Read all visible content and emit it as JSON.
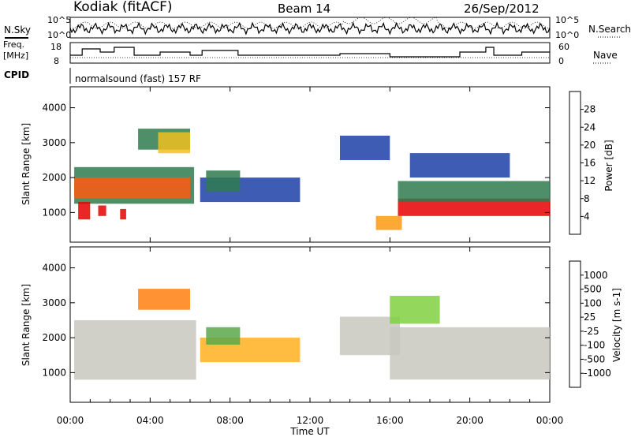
{
  "header": {
    "station": "Kodiak (fitACF)",
    "beam": "Beam 14",
    "date": "26/Sep/2012"
  },
  "labels": {
    "nsky": "N.Sky",
    "nsearch": "N.Search",
    "freq_line1": "Freq.",
    "freq_line2": "[MHz]",
    "nave": "Nave",
    "cpid": "CPID",
    "cpid_value": "normalsound (fast) 157 RF",
    "noise_ticks_left": [
      "10^5",
      "10^0"
    ],
    "noise_ticks_right": [
      "10^5",
      "10^0"
    ],
    "freq_ticks": [
      "18",
      "8"
    ],
    "nave_ticks": [
      "60",
      "0"
    ]
  },
  "chart_data": [
    {
      "type": "heatmap",
      "name": "power",
      "xlabel": "",
      "ylabel": "Slant Range [km]",
      "x_ticks": [
        "00:00",
        "04:00",
        "08:00",
        "12:00",
        "16:00",
        "20:00",
        "00:00"
      ],
      "y_ticks": [
        1000,
        2000,
        3000,
        4000
      ],
      "ylim": [
        150,
        4600
      ],
      "colorbar": {
        "label": "Power [dB]",
        "ticks": [
          "4",
          "8",
          "12",
          "16",
          "20",
          "24",
          "28"
        ],
        "colors": [
          "#0a1aff",
          "#1d3fa8",
          "#2f7a4f",
          "#4ea84a",
          "#9ad640",
          "#f0c020",
          "#ff9a10",
          "#ff5a10",
          "#e80000"
        ]
      },
      "regions": [
        {
          "t0": 0.2,
          "t1": 6.2,
          "r0": 1250,
          "r1": 2300,
          "color": "#2f7a4f"
        },
        {
          "t0": 0.2,
          "t1": 6.0,
          "r0": 1400,
          "r1": 2000,
          "color": "#ff5a10"
        },
        {
          "t0": 0.4,
          "t1": 1.0,
          "r0": 800,
          "r1": 1300,
          "color": "#e80000"
        },
        {
          "t0": 1.4,
          "t1": 1.8,
          "r0": 900,
          "r1": 1200,
          "color": "#e80000"
        },
        {
          "t0": 2.5,
          "t1": 2.8,
          "r0": 800,
          "r1": 1100,
          "color": "#e80000"
        },
        {
          "t0": 3.4,
          "t1": 6.0,
          "r0": 2800,
          "r1": 3400,
          "color": "#2f7a4f"
        },
        {
          "t0": 4.4,
          "t1": 6.0,
          "r0": 2700,
          "r1": 3300,
          "color": "#f0c020"
        },
        {
          "t0": 6.5,
          "t1": 11.5,
          "r0": 1300,
          "r1": 2000,
          "color": "#1d3fa8"
        },
        {
          "t0": 6.8,
          "t1": 8.5,
          "r0": 1600,
          "r1": 2200,
          "color": "#2f7a4f"
        },
        {
          "t0": 13.5,
          "t1": 16.0,
          "r0": 2500,
          "r1": 3200,
          "color": "#1d3fa8"
        },
        {
          "t0": 15.3,
          "t1": 16.6,
          "r0": 500,
          "r1": 900,
          "color": "#ff9a10"
        },
        {
          "t0": 16.4,
          "t1": 24.0,
          "r0": 900,
          "r1": 1400,
          "color": "#e80000"
        },
        {
          "t0": 16.4,
          "t1": 24.0,
          "r0": 1300,
          "r1": 1900,
          "color": "#2f7a4f"
        },
        {
          "t0": 17.0,
          "t1": 22.0,
          "r0": 2000,
          "r1": 2700,
          "color": "#1d3fa8"
        }
      ]
    },
    {
      "type": "heatmap",
      "name": "velocity",
      "xlabel": "Time UT",
      "ylabel": "Slant Range [km]",
      "x_ticks": [
        "00:00",
        "04:00",
        "08:00",
        "12:00",
        "16:00",
        "20:00",
        "00:00"
      ],
      "y_ticks": [
        1000,
        2000,
        3000,
        4000
      ],
      "ylim": [
        150,
        4600
      ],
      "colorbar": {
        "label": "Velocity [m s-1]",
        "ticks": [
          "1000",
          "500",
          "100",
          "25",
          "-25",
          "-100",
          "-500",
          "-1000"
        ],
        "colors": [
          "#1a2fd0",
          "#2f6f5f",
          "#5aa84a",
          "#80d040",
          "#c8c8c0",
          "#ffb020",
          "#ff8010",
          "#ff4010",
          "#e80000"
        ]
      },
      "regions": [
        {
          "t0": 0.2,
          "t1": 6.3,
          "r0": 800,
          "r1": 2500,
          "color": "#c8c8c0"
        },
        {
          "t0": 3.4,
          "t1": 6.0,
          "r0": 2800,
          "r1": 3400,
          "color": "#ff8010"
        },
        {
          "t0": 6.5,
          "t1": 11.5,
          "r0": 1300,
          "r1": 2000,
          "color": "#ffb020"
        },
        {
          "t0": 6.8,
          "t1": 8.5,
          "r0": 1800,
          "r1": 2300,
          "color": "#5aa84a"
        },
        {
          "t0": 13.5,
          "t1": 16.5,
          "r0": 1500,
          "r1": 2600,
          "color": "#c8c8c0"
        },
        {
          "t0": 16.0,
          "t1": 24.0,
          "r0": 800,
          "r1": 2300,
          "color": "#c8c8c0"
        },
        {
          "t0": 16.0,
          "t1": 18.5,
          "r0": 2400,
          "r1": 3200,
          "color": "#80d040"
        }
      ]
    }
  ]
}
